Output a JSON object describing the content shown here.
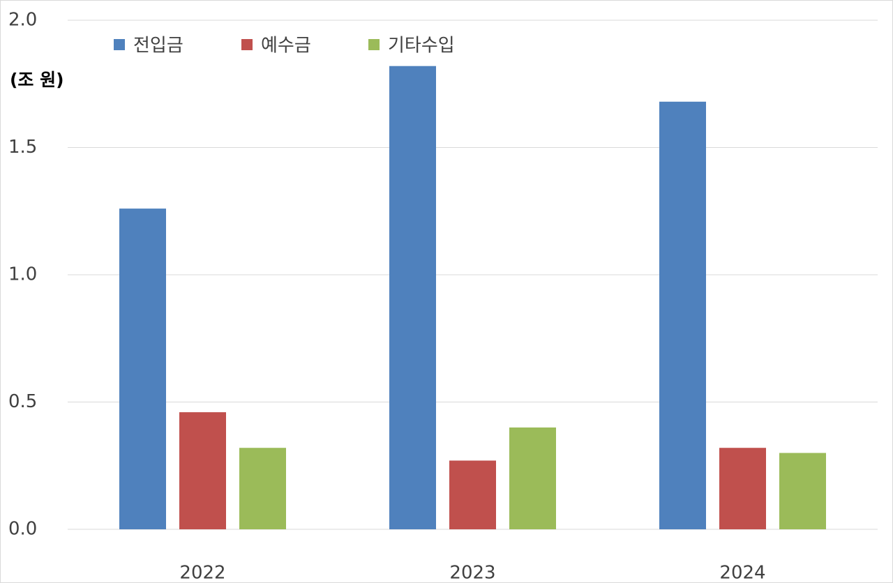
{
  "chart_data": {
    "type": "bar",
    "y_label": "(조 원)",
    "categories": [
      "2022",
      "2023",
      "2024"
    ],
    "series": [
      {
        "name": "전입금",
        "color": "#4f81bd",
        "values": [
          1.26,
          1.82,
          1.68
        ]
      },
      {
        "name": "예수금",
        "color": "#c0504d",
        "values": [
          0.46,
          0.27,
          0.32
        ]
      },
      {
        "name": "기타수입",
        "color": "#9bbb59",
        "values": [
          0.32,
          0.4,
          0.3
        ]
      }
    ],
    "ylim": [
      0,
      2.0
    ],
    "yticks": [
      {
        "value": 0,
        "label": "0.0"
      },
      {
        "value": 0.5,
        "label": "0.5"
      },
      {
        "value": 1,
        "label": "1.0"
      },
      {
        "value": 1.5,
        "label": "1.5"
      },
      {
        "value": 2,
        "label": "2.0"
      }
    ],
    "grid": true,
    "legend": "top"
  }
}
